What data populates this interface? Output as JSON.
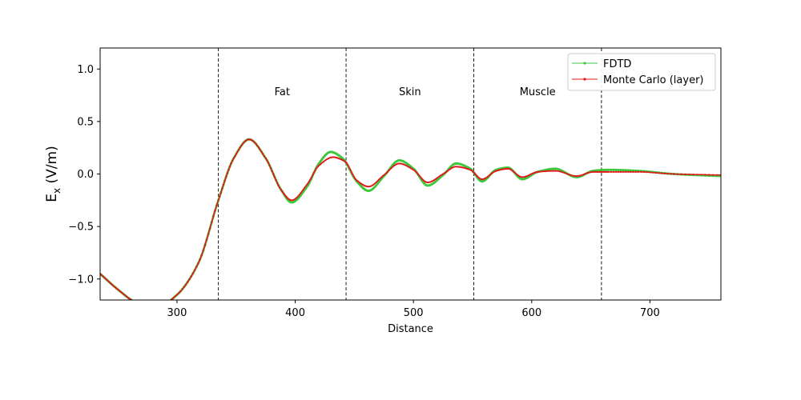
{
  "chart_data": {
    "type": "line",
    "title": "",
    "xlabel": "Distance",
    "ylabel_main": "E",
    "ylabel_sub": "x",
    "ylabel_unit": " (V/m)",
    "xlim": [
      235,
      760
    ],
    "ylim": [
      -1.2,
      1.2
    ],
    "xticks": [
      300,
      400,
      500,
      600,
      700
    ],
    "yticks": [
      -1.0,
      -0.5,
      0.0,
      0.5,
      1.0
    ],
    "xtick_labels": [
      "300",
      "400",
      "500",
      "600",
      "700"
    ],
    "ytick_labels": [
      "−1.0",
      "−0.5",
      "0.0",
      "0.5",
      "1.0"
    ],
    "grid": false,
    "legend_position": "top-right",
    "boundaries": [
      335,
      443,
      551,
      659
    ],
    "regions": [
      {
        "label": "Fat",
        "x": 389,
        "y": 0.79
      },
      {
        "label": "Skin",
        "x": 497,
        "y": 0.79
      },
      {
        "label": "Muscle",
        "x": 605,
        "y": 0.79
      }
    ],
    "series": [
      {
        "name": "FDTD",
        "color": "#3cc83c",
        "x": [
          235,
          250,
          265,
          283,
          300,
          318,
          335,
          348,
          361,
          375,
          388,
          397,
          410,
          420,
          430,
          440,
          452,
          462,
          475,
          488,
          500,
          512,
          525,
          536,
          548,
          558,
          570,
          580,
          592,
          605,
          620,
          638,
          652,
          665,
          690,
          720,
          760
        ],
        "y": [
          -0.95,
          -1.1,
          -1.22,
          -1.27,
          -1.15,
          -0.85,
          -0.25,
          0.15,
          0.33,
          0.15,
          -0.15,
          -0.27,
          -0.12,
          0.1,
          0.21,
          0.15,
          -0.07,
          -0.16,
          -0.02,
          0.13,
          0.05,
          -0.11,
          -0.01,
          0.1,
          0.05,
          -0.07,
          0.04,
          0.06,
          -0.05,
          0.02,
          0.05,
          -0.03,
          0.03,
          0.04,
          0.03,
          0.0,
          -0.02
        ]
      },
      {
        "name": "Monte Carlo (layer)",
        "color": "#e01a1a",
        "x": [
          235,
          250,
          265,
          283,
          300,
          318,
          335,
          348,
          361,
          375,
          388,
          397,
          410,
          420,
          432,
          442,
          452,
          462,
          475,
          488,
          500,
          512,
          525,
          536,
          548,
          558,
          570,
          580,
          592,
          605,
          620,
          638,
          652,
          665,
          690,
          720,
          760
        ],
        "y": [
          -0.95,
          -1.1,
          -1.22,
          -1.27,
          -1.15,
          -0.85,
          -0.25,
          0.15,
          0.33,
          0.15,
          -0.15,
          -0.25,
          -0.1,
          0.08,
          0.16,
          0.12,
          -0.06,
          -0.12,
          -0.01,
          0.1,
          0.04,
          -0.08,
          0.0,
          0.07,
          0.04,
          -0.05,
          0.03,
          0.05,
          -0.03,
          0.02,
          0.03,
          -0.02,
          0.02,
          0.02,
          0.02,
          0.0,
          -0.01
        ]
      }
    ]
  }
}
